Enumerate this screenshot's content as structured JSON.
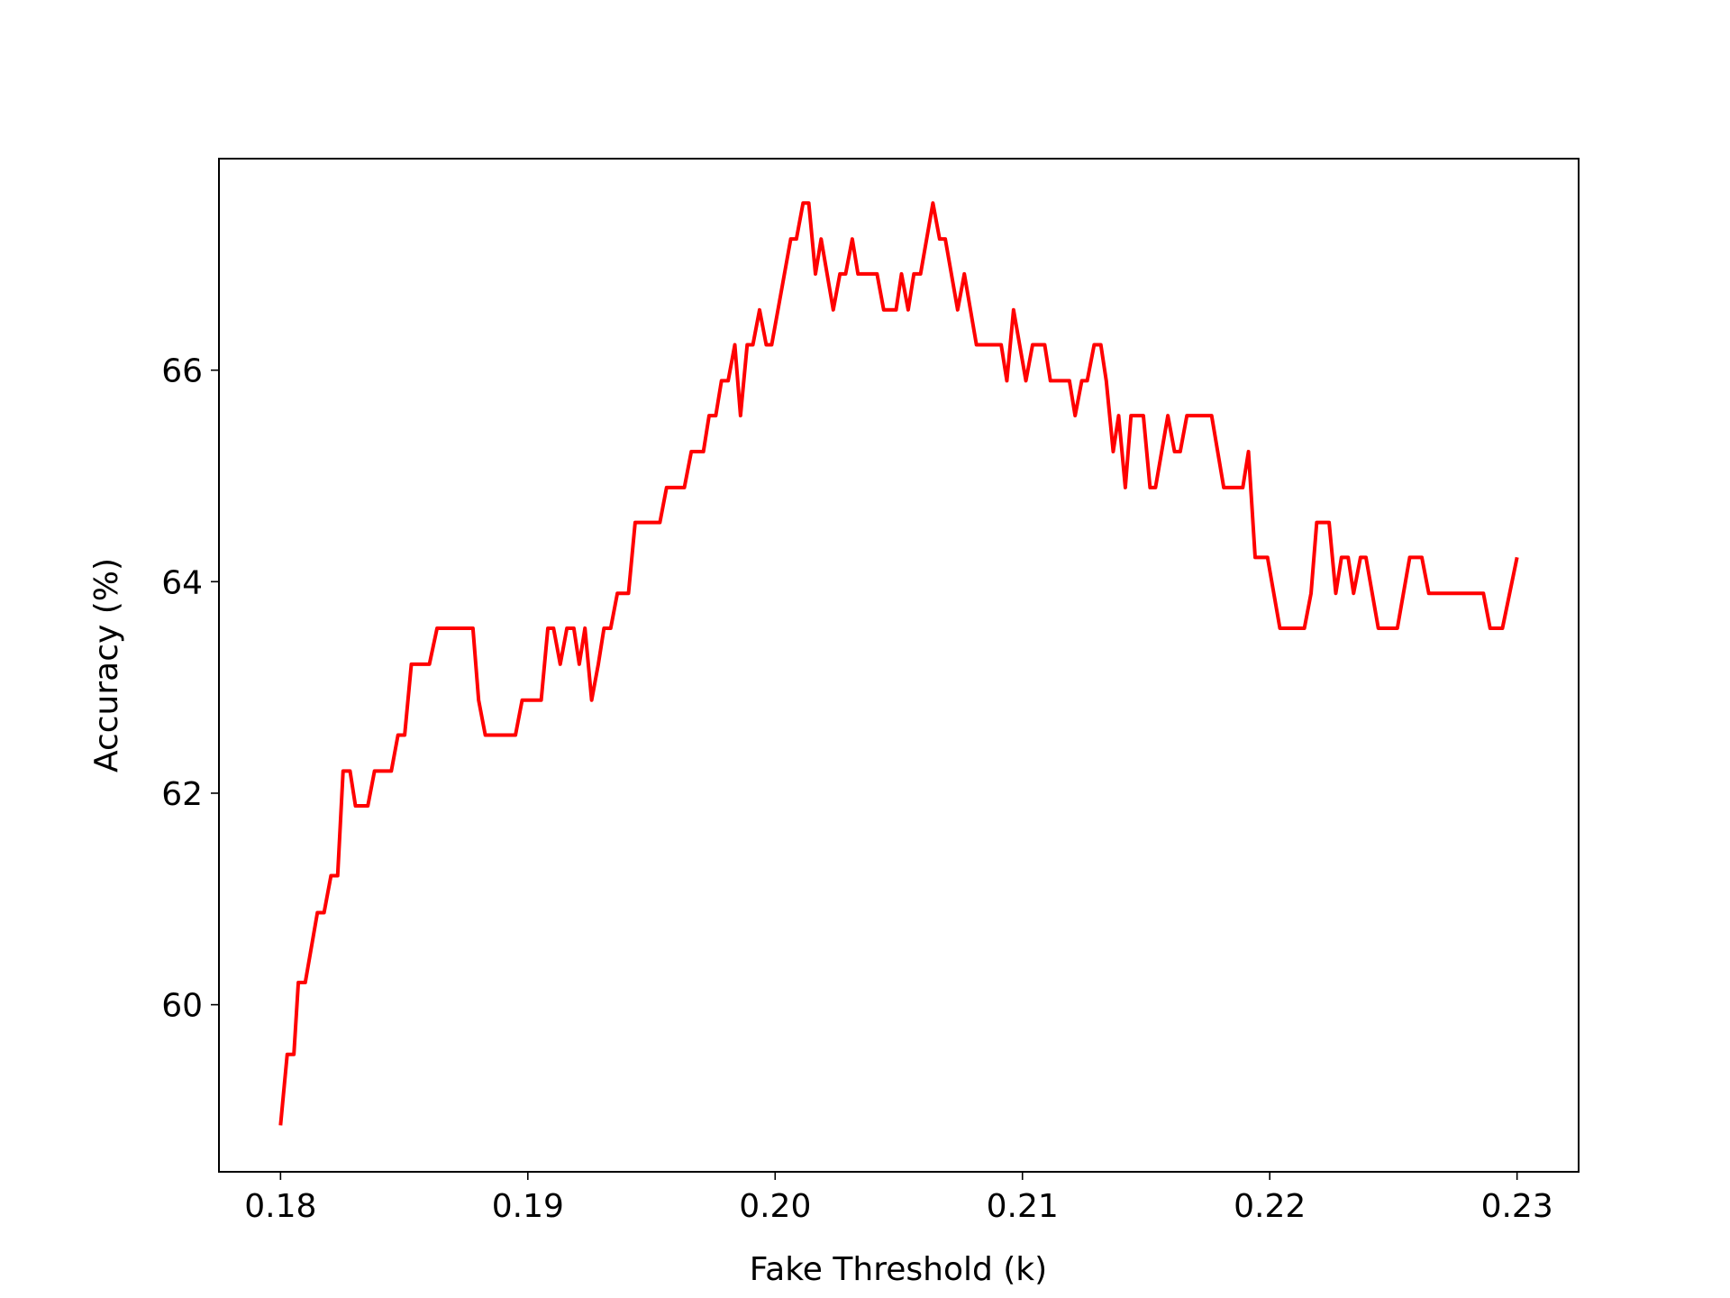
{
  "chart_data": {
    "type": "line",
    "xlabel": "Fake Threshold (k)",
    "ylabel": "Accuracy (%)",
    "xlim": [
      0.17751,
      0.23249
    ],
    "ylim": [
      58.42,
      68.0
    ],
    "xticks": [
      0.18,
      0.19,
      {
        "value": 0.2,
        "label": "0.20"
      },
      0.21,
      0.22,
      0.23
    ],
    "yticks": [
      60,
      62,
      64,
      66
    ],
    "grid": false,
    "series": [
      {
        "color": "#ff0000",
        "x": [
          0.18,
          0.18027,
          0.18054,
          0.18072,
          0.181,
          0.18149,
          0.18176,
          0.18204,
          0.18231,
          0.18253,
          0.18281,
          0.18303,
          0.18353,
          0.1838,
          0.18448,
          0.18475,
          0.18502,
          0.18529,
          0.18602,
          0.18633,
          0.18778,
          0.18801,
          0.18828,
          0.1895,
          0.18977,
          0.19054,
          0.19081,
          0.19104,
          0.19131,
          0.19158,
          0.19186,
          0.19208,
          0.19231,
          0.19258,
          0.19285,
          0.19308,
          0.19335,
          0.19362,
          0.19407,
          0.19434,
          0.19534,
          0.19561,
          0.19633,
          0.19661,
          0.1971,
          0.19733,
          0.1976,
          0.19783,
          0.1981,
          0.19837,
          0.1986,
          0.19887,
          0.1991,
          0.19937,
          0.19964,
          0.19986,
          0.20063,
          0.20086,
          0.20113,
          0.20136,
          0.20163,
          0.20186,
          0.20235,
          0.20262,
          0.20285,
          0.20312,
          0.20335,
          0.20412,
          0.20439,
          0.20489,
          0.20511,
          0.20538,
          0.20561,
          0.20588,
          0.20638,
          0.20665,
          0.20688,
          0.20738,
          0.20765,
          0.20814,
          0.20914,
          0.20937,
          0.20964,
          0.21014,
          0.21041,
          0.2109,
          0.21113,
          0.2119,
          0.21213,
          0.2124,
          0.21262,
          0.2129,
          0.21317,
          0.21339,
          0.21367,
          0.21389,
          0.21416,
          0.21439,
          0.21489,
          0.21516,
          0.21538,
          0.21588,
          0.21615,
          0.21638,
          0.21665,
          0.21765,
          0.21814,
          0.21891,
          0.21914,
          0.21941,
          0.21991,
          0.22041,
          0.2214,
          0.22167,
          0.2219,
          0.2224,
          0.22267,
          0.2229,
          0.22317,
          0.22339,
          0.22367,
          0.22389,
          0.22439,
          0.22516,
          0.22566,
          0.22615,
          0.22643,
          0.22864,
          0.22891,
          0.22941,
          0.23
        ],
        "values": [
          58.86,
          59.53,
          59.53,
          60.21,
          60.21,
          60.87,
          60.87,
          61.22,
          61.22,
          62.21,
          62.21,
          61.88,
          61.88,
          62.21,
          62.21,
          62.55,
          62.55,
          63.22,
          63.22,
          63.56,
          63.56,
          62.88,
          62.55,
          62.55,
          62.88,
          62.88,
          63.56,
          63.56,
          63.22,
          63.56,
          63.56,
          63.22,
          63.56,
          62.88,
          63.22,
          63.56,
          63.56,
          63.89,
          63.89,
          64.56,
          64.56,
          64.89,
          64.89,
          65.23,
          65.23,
          65.57,
          65.57,
          65.9,
          65.9,
          66.24,
          65.57,
          66.24,
          66.24,
          66.57,
          66.24,
          66.24,
          67.24,
          67.24,
          67.58,
          67.58,
          66.91,
          67.24,
          66.57,
          66.91,
          66.91,
          67.24,
          66.91,
          66.91,
          66.57,
          66.57,
          66.91,
          66.57,
          66.91,
          66.91,
          67.58,
          67.24,
          67.24,
          66.57,
          66.91,
          66.24,
          66.24,
          65.9,
          66.57,
          65.9,
          66.24,
          66.24,
          65.9,
          65.9,
          65.57,
          65.9,
          65.9,
          66.24,
          66.24,
          65.9,
          65.23,
          65.57,
          64.89,
          65.57,
          65.57,
          64.89,
          64.89,
          65.57,
          65.23,
          65.23,
          65.57,
          65.57,
          64.89,
          64.89,
          65.23,
          64.23,
          64.23,
          63.56,
          63.56,
          63.89,
          64.56,
          64.56,
          63.89,
          64.23,
          64.23,
          63.89,
          64.23,
          64.23,
          63.56,
          63.56,
          64.23,
          64.23,
          63.89,
          63.89,
          63.56,
          63.56,
          64.23
        ]
      }
    ]
  }
}
